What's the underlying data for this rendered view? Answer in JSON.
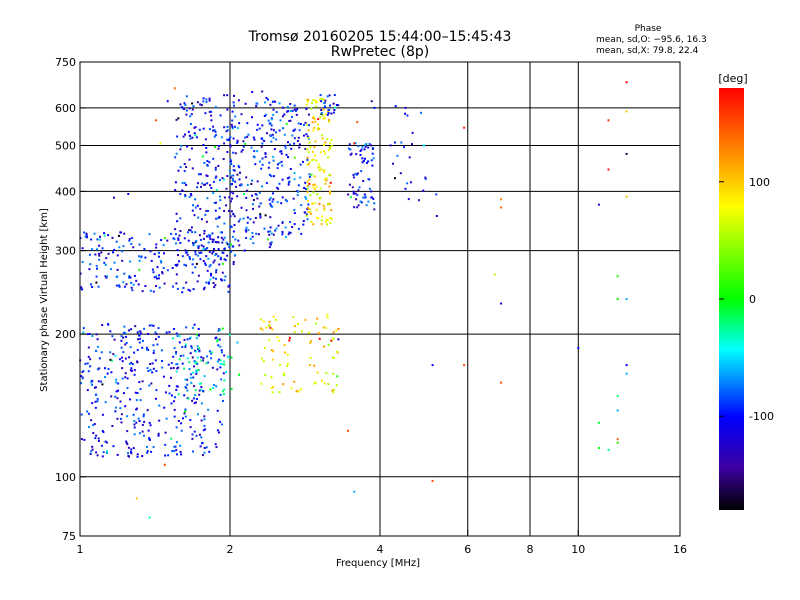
{
  "chart_data": {
    "type": "scatter",
    "title": "Tromsø 20160205 15:44:00–15:45:43",
    "subtitle": "RwPretec (8p)",
    "xlabel": "Frequency [MHz]",
    "ylabel": "Stationary phase Virtual Height [km]",
    "x_scale": "log",
    "y_scale": "log",
    "xlim": [
      1,
      16
    ],
    "ylim": [
      75,
      750
    ],
    "x_ticks": [
      1,
      2,
      4,
      6,
      8,
      10,
      16
    ],
    "x_tick_labels": [
      "1",
      "2",
      "4",
      "6",
      "8",
      "10",
      "16"
    ],
    "x_grid": [
      1,
      2,
      4,
      6,
      8,
      10
    ],
    "y_ticks": [
      75,
      100,
      200,
      300,
      400,
      500,
      600,
      750
    ],
    "y_tick_labels": [
      "75",
      "100",
      "200",
      "300",
      "400",
      "500",
      "600",
      "750"
    ],
    "y_grid": [
      100,
      200,
      300,
      400,
      500,
      600
    ],
    "grid": true,
    "stats": {
      "heading": "Phase",
      "line_o": "mean, sd,O: −95.6, 16.3",
      "line_x": "mean, sd,X:  79.8, 22.4"
    },
    "colorbar": {
      "label": "[deg]",
      "range": [
        -180,
        180
      ],
      "ticks": [
        100,
        0,
        -100
      ],
      "tick_labels": [
        "100",
        "0",
        "-100"
      ],
      "colors": [
        "#ff0000",
        "#ff8000",
        "#ffff00",
        "#00ff00",
        "#00ffff",
        "#0000ff",
        "#000000"
      ]
    },
    "points_note_free": true,
    "clusters": [
      {
        "x_range": [
          1.0,
          1.95
        ],
        "y_range": [
          110,
          210
        ],
        "phase": -100,
        "count": 420
      },
      {
        "x_range": [
          1.0,
          2.0
        ],
        "y_range": [
          245,
          330
        ],
        "phase": -100,
        "count": 230
      },
      {
        "x_range": [
          1.55,
          2.05
        ],
        "y_range": [
          280,
          640
        ],
        "phase": -100,
        "count": 260
      },
      {
        "x_range": [
          2.0,
          2.45
        ],
        "y_range": [
          300,
          650
        ],
        "phase": -100,
        "count": 160
      },
      {
        "x_range": [
          2.4,
          2.9
        ],
        "y_range": [
          320,
          620
        ],
        "phase": -90,
        "count": 150
      },
      {
        "x_range": [
          2.85,
          3.2
        ],
        "y_range": [
          340,
          630
        ],
        "phase": 90,
        "count": 140
      },
      {
        "x_range": [
          3.0,
          3.3
        ],
        "y_range": [
          580,
          640
        ],
        "phase": -100,
        "count": 25
      },
      {
        "x_range": [
          3.45,
          3.9
        ],
        "y_range": [
          360,
          510
        ],
        "phase": -100,
        "count": 70
      },
      {
        "x_range": [
          2.3,
          3.3
        ],
        "y_range": [
          150,
          220
        ],
        "phase": 90,
        "count": 90
      },
      {
        "x_range": [
          1.55,
          2.1
        ],
        "y_range": [
          145,
          200
        ],
        "phase": -40,
        "count": 60
      },
      {
        "x_range": [
          4.2,
          5.2
        ],
        "y_range": [
          380,
          600
        ],
        "phase": -100,
        "count": 22
      }
    ],
    "sparse_points": [
      {
        "x": 1.3,
        "y": 90,
        "phase": 110
      },
      {
        "x": 1.38,
        "y": 82,
        "phase": -30
      },
      {
        "x": 1.48,
        "y": 106,
        "phase": 150
      },
      {
        "x": 3.55,
        "y": 93,
        "phase": -60
      },
      {
        "x": 5.1,
        "y": 98,
        "phase": 150
      },
      {
        "x": 5.1,
        "y": 172,
        "phase": -100
      },
      {
        "x": 5.9,
        "y": 172,
        "phase": 150
      },
      {
        "x": 5.9,
        "y": 545,
        "phase": 170
      },
      {
        "x": 5.2,
        "y": 355,
        "phase": -120
      },
      {
        "x": 7.0,
        "y": 385,
        "phase": 130
      },
      {
        "x": 7.0,
        "y": 370,
        "phase": 140
      },
      {
        "x": 6.8,
        "y": 267,
        "phase": 70
      },
      {
        "x": 7.0,
        "y": 232,
        "phase": -120
      },
      {
        "x": 7.0,
        "y": 158,
        "phase": 150
      },
      {
        "x": 10.0,
        "y": 187,
        "phase": -100
      },
      {
        "x": 11.0,
        "y": 375,
        "phase": -120
      },
      {
        "x": 11.5,
        "y": 565,
        "phase": 160
      },
      {
        "x": 11.5,
        "y": 445,
        "phase": 170
      },
      {
        "x": 12.0,
        "y": 265,
        "phase": 10
      },
      {
        "x": 12.0,
        "y": 237,
        "phase": 0
      },
      {
        "x": 12.0,
        "y": 148,
        "phase": -20
      },
      {
        "x": 12.0,
        "y": 138,
        "phase": -60
      },
      {
        "x": 12.0,
        "y": 118,
        "phase": 10
      },
      {
        "x": 11.0,
        "y": 115,
        "phase": 0
      },
      {
        "x": 11.5,
        "y": 114,
        "phase": -20
      },
      {
        "x": 12.0,
        "y": 120,
        "phase": 140
      },
      {
        "x": 12.5,
        "y": 172,
        "phase": -100
      },
      {
        "x": 12.5,
        "y": 165,
        "phase": -60
      },
      {
        "x": 12.5,
        "y": 237,
        "phase": -60
      },
      {
        "x": 12.5,
        "y": 390,
        "phase": 110
      },
      {
        "x": 12.5,
        "y": 480,
        "phase": -160
      },
      {
        "x": 12.5,
        "y": 590,
        "phase": 110
      },
      {
        "x": 12.5,
        "y": 680,
        "phase": 180
      },
      {
        "x": 11.0,
        "y": 130,
        "phase": -10
      },
      {
        "x": 4.5,
        "y": 405,
        "phase": -110
      },
      {
        "x": 4.9,
        "y": 500,
        "phase": -40
      },
      {
        "x": 4.3,
        "y": 605,
        "phase": -100
      },
      {
        "x": 4.5,
        "y": 600,
        "phase": -110
      },
      {
        "x": 3.9,
        "y": 600,
        "phase": -100
      },
      {
        "x": 3.85,
        "y": 620,
        "phase": -150
      },
      {
        "x": 3.6,
        "y": 560,
        "phase": 150
      },
      {
        "x": 3.55,
        "y": 505,
        "phase": 170
      },
      {
        "x": 3.45,
        "y": 125,
        "phase": 150
      },
      {
        "x": 3.3,
        "y": 195,
        "phase": -120
      },
      {
        "x": 3.3,
        "y": 205,
        "phase": 130
      },
      {
        "x": 1.25,
        "y": 395,
        "phase": -100
      },
      {
        "x": 1.17,
        "y": 388,
        "phase": -120
      },
      {
        "x": 1.55,
        "y": 660,
        "phase": 140
      },
      {
        "x": 1.5,
        "y": 620,
        "phase": -100
      },
      {
        "x": 1.45,
        "y": 505,
        "phase": 90
      },
      {
        "x": 1.42,
        "y": 565,
        "phase": 150
      }
    ]
  }
}
